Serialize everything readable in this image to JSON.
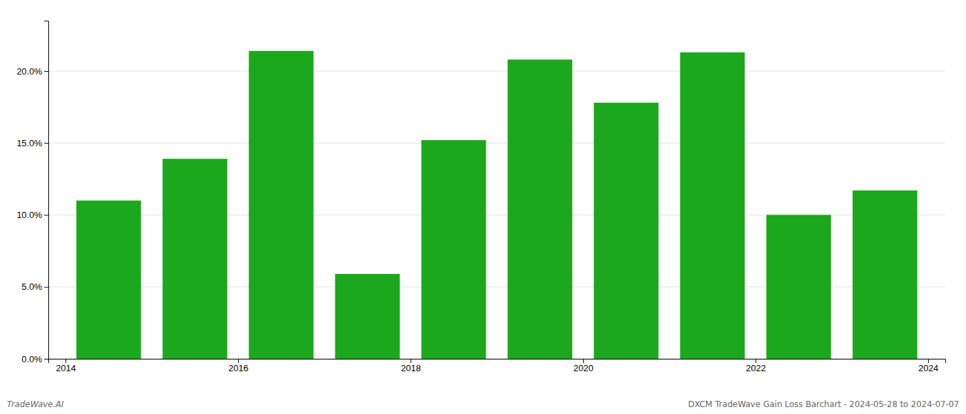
{
  "chart_data": {
    "type": "bar",
    "x": [
      2014,
      2015,
      2016,
      2017,
      2018,
      2019,
      2020,
      2021,
      2022,
      2023
    ],
    "values": [
      0.11,
      0.139,
      0.214,
      0.059,
      0.152,
      0.208,
      0.178,
      0.213,
      0.1,
      0.117
    ],
    "color": "#1ca81c",
    "xlim": [
      2013.8,
      2024.2
    ],
    "xticks": [
      2014,
      2016,
      2018,
      2020,
      2022,
      2024
    ],
    "ylim": [
      0.0,
      0.235
    ],
    "yticks": [
      {
        "value": 0.0,
        "label": "0.0%"
      },
      {
        "value": 0.05,
        "label": "5.0%"
      },
      {
        "value": 0.1,
        "label": "10.0%"
      },
      {
        "value": 0.15,
        "label": "15.0%"
      },
      {
        "value": 0.2,
        "label": "20.0%"
      }
    ],
    "grid": true,
    "annotations": [
      "TradeWave.AI",
      "DXCM TradeWave Gain Loss Barchart - 2024-05-28 to 2024-07-07"
    ]
  }
}
